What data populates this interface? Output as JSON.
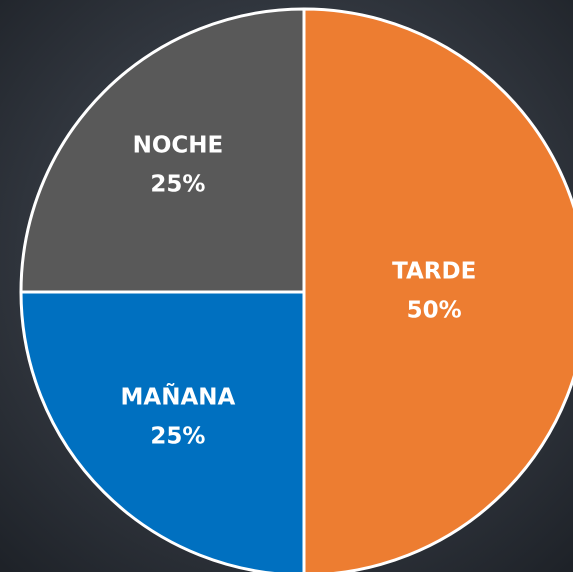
{
  "chart_data": {
    "type": "pie",
    "categories": [
      "TARDE",
      "MAÑANA",
      "NOCHE"
    ],
    "values": [
      50,
      25,
      25
    ],
    "value_labels": [
      "50%",
      "25%",
      "25%"
    ],
    "colors": [
      "#ed7d31",
      "#0070c0",
      "#595959"
    ]
  }
}
